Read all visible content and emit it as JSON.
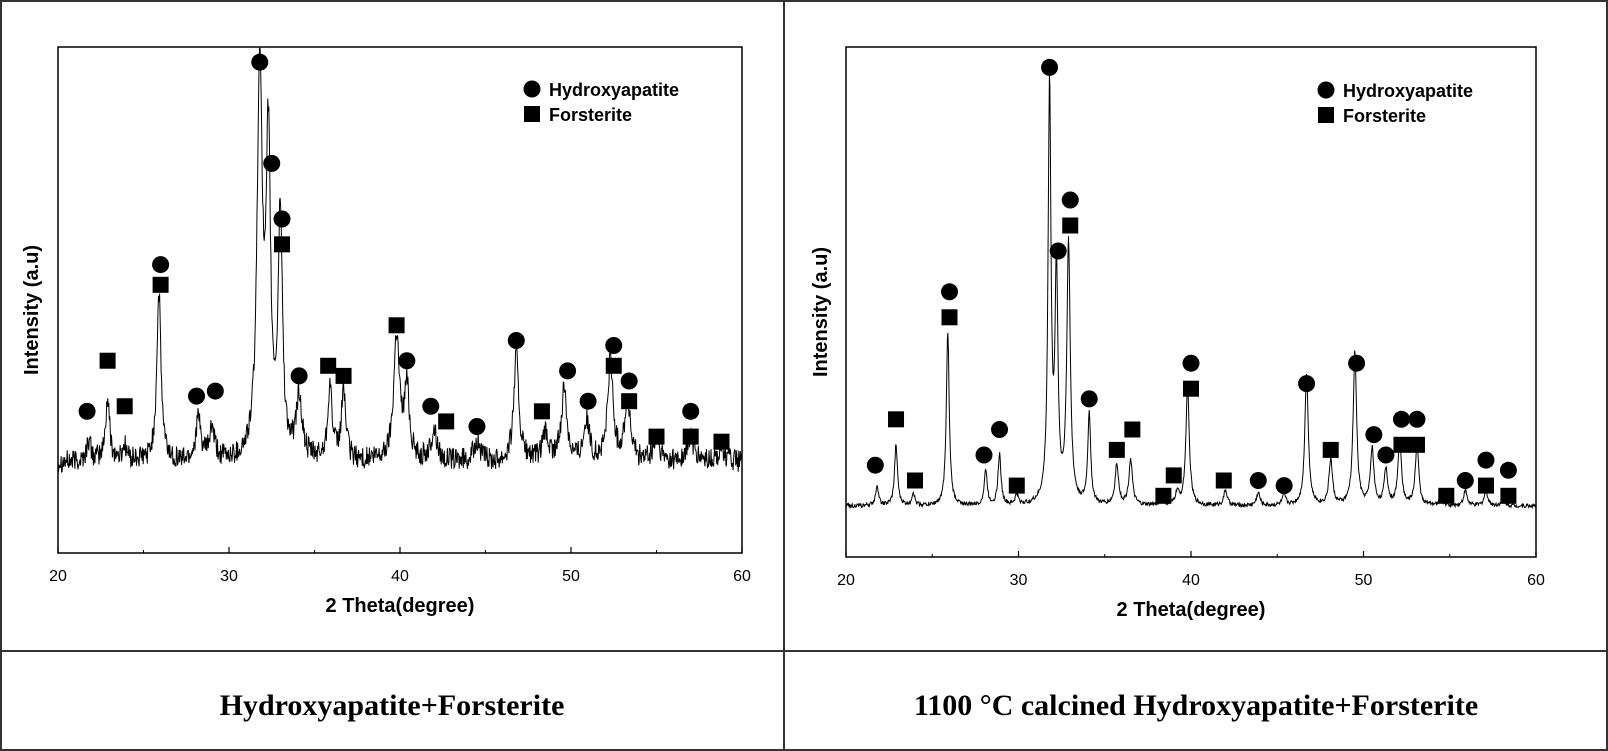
{
  "captions": {
    "left": "Hydroxyapatite+Forsterite",
    "right": "1100 °C calcined Hydroxyapatite+Forsterite"
  },
  "colors": {
    "line": "#000000",
    "border": "#333333",
    "background": "#ffffff"
  },
  "chart_data": [
    {
      "type": "line",
      "title": "",
      "xlabel": "2 Theta(degree)",
      "ylabel": "Intensity (a.u)",
      "xlim": [
        20,
        60
      ],
      "ylim": [
        0,
        100
      ],
      "xticks": [
        20,
        30,
        40,
        50,
        60
      ],
      "grid": false,
      "legend": {
        "position": "top-right",
        "entries": [
          {
            "name": "Hydroxyapatite",
            "marker": "circle"
          },
          {
            "name": "Forsterite",
            "marker": "square"
          }
        ]
      },
      "baseline": 18,
      "noise": 2.2,
      "peaks": [
        {
          "x": 21.8,
          "height": 4,
          "width": 0.15
        },
        {
          "x": 22.9,
          "height": 12,
          "width": 0.15
        },
        {
          "x": 23.9,
          "height": 3,
          "width": 0.15
        },
        {
          "x": 25.9,
          "height": 33,
          "width": 0.15
        },
        {
          "x": 28.2,
          "height": 8,
          "width": 0.18
        },
        {
          "x": 29.0,
          "height": 6,
          "width": 0.18
        },
        {
          "x": 31.8,
          "height": 78,
          "width": 0.18
        },
        {
          "x": 32.3,
          "height": 60,
          "width": 0.15
        },
        {
          "x": 33.0,
          "height": 48,
          "width": 0.15
        },
        {
          "x": 34.1,
          "height": 12,
          "width": 0.2
        },
        {
          "x": 35.9,
          "height": 15,
          "width": 0.15
        },
        {
          "x": 36.7,
          "height": 14,
          "width": 0.15
        },
        {
          "x": 39.8,
          "height": 25,
          "width": 0.2
        },
        {
          "x": 40.4,
          "height": 14,
          "width": 0.18
        },
        {
          "x": 42.0,
          "height": 6,
          "width": 0.2
        },
        {
          "x": 44.5,
          "height": 4,
          "width": 0.2
        },
        {
          "x": 46.8,
          "height": 21,
          "width": 0.18
        },
        {
          "x": 48.5,
          "height": 5,
          "width": 0.2
        },
        {
          "x": 49.6,
          "height": 14,
          "width": 0.2
        },
        {
          "x": 50.9,
          "height": 8,
          "width": 0.2
        },
        {
          "x": 52.3,
          "height": 20,
          "width": 0.18
        },
        {
          "x": 53.3,
          "height": 12,
          "width": 0.2
        },
        {
          "x": 55.0,
          "height": 4,
          "width": 0.2
        },
        {
          "x": 57.0,
          "height": 5,
          "width": 0.2
        },
        {
          "x": 58.8,
          "height": 3,
          "width": 0.2
        }
      ],
      "markers": [
        {
          "x": 21.7,
          "y": 28,
          "shape": "circle"
        },
        {
          "x": 22.9,
          "y": 38,
          "shape": "square"
        },
        {
          "x": 23.9,
          "y": 29,
          "shape": "square"
        },
        {
          "x": 26.0,
          "y": 57,
          "shape": "circle"
        },
        {
          "x": 26.0,
          "y": 53,
          "shape": "square"
        },
        {
          "x": 28.1,
          "y": 31,
          "shape": "circle"
        },
        {
          "x": 29.2,
          "y": 32,
          "shape": "circle"
        },
        {
          "x": 31.8,
          "y": 97,
          "shape": "circle"
        },
        {
          "x": 32.5,
          "y": 77,
          "shape": "circle"
        },
        {
          "x": 33.1,
          "y": 66,
          "shape": "circle"
        },
        {
          "x": 33.1,
          "y": 61,
          "shape": "square"
        },
        {
          "x": 34.1,
          "y": 35,
          "shape": "circle"
        },
        {
          "x": 35.8,
          "y": 37,
          "shape": "square"
        },
        {
          "x": 36.7,
          "y": 35,
          "shape": "square"
        },
        {
          "x": 39.8,
          "y": 45,
          "shape": "square"
        },
        {
          "x": 40.4,
          "y": 38,
          "shape": "circle"
        },
        {
          "x": 41.8,
          "y": 29,
          "shape": "circle"
        },
        {
          "x": 42.7,
          "y": 26,
          "shape": "square"
        },
        {
          "x": 44.5,
          "y": 25,
          "shape": "circle"
        },
        {
          "x": 46.8,
          "y": 42,
          "shape": "circle"
        },
        {
          "x": 48.3,
          "y": 28,
          "shape": "square"
        },
        {
          "x": 49.8,
          "y": 36,
          "shape": "circle"
        },
        {
          "x": 51.0,
          "y": 30,
          "shape": "circle"
        },
        {
          "x": 52.5,
          "y": 41,
          "shape": "circle"
        },
        {
          "x": 52.5,
          "y": 37,
          "shape": "square"
        },
        {
          "x": 53.4,
          "y": 34,
          "shape": "circle"
        },
        {
          "x": 53.4,
          "y": 30,
          "shape": "square"
        },
        {
          "x": 55.0,
          "y": 23,
          "shape": "square"
        },
        {
          "x": 57.0,
          "y": 28,
          "shape": "circle"
        },
        {
          "x": 57.0,
          "y": 23,
          "shape": "square"
        },
        {
          "x": 58.8,
          "y": 22,
          "shape": "square"
        }
      ]
    },
    {
      "type": "line",
      "title": "",
      "xlabel": "2 Theta(degree)",
      "ylabel": "Intensity (a.u)",
      "xlim": [
        20,
        60
      ],
      "ylim": [
        0,
        100
      ],
      "xticks": [
        20,
        30,
        40,
        50,
        60
      ],
      "grid": false,
      "legend": {
        "position": "top-right",
        "entries": [
          {
            "name": "Hydroxyapatite",
            "marker": "circle"
          },
          {
            "name": "Forsterite",
            "marker": "square"
          }
        ]
      },
      "baseline": 10,
      "noise": 0.4,
      "peaks": [
        {
          "x": 21.8,
          "height": 4,
          "width": 0.1
        },
        {
          "x": 22.9,
          "height": 12,
          "width": 0.1
        },
        {
          "x": 23.9,
          "height": 2.5,
          "width": 0.1
        },
        {
          "x": 25.9,
          "height": 34,
          "width": 0.1
        },
        {
          "x": 28.1,
          "height": 7,
          "width": 0.1
        },
        {
          "x": 28.9,
          "height": 10,
          "width": 0.1
        },
        {
          "x": 29.9,
          "height": 2,
          "width": 0.1
        },
        {
          "x": 31.8,
          "height": 82,
          "width": 0.1
        },
        {
          "x": 32.2,
          "height": 45,
          "width": 0.1
        },
        {
          "x": 32.9,
          "height": 51,
          "width": 0.12
        },
        {
          "x": 34.1,
          "height": 18,
          "width": 0.1
        },
        {
          "x": 35.7,
          "height": 8,
          "width": 0.12
        },
        {
          "x": 36.5,
          "height": 9,
          "width": 0.12
        },
        {
          "x": 38.3,
          "height": 1.5,
          "width": 0.12
        },
        {
          "x": 39.2,
          "height": 2.5,
          "width": 0.12
        },
        {
          "x": 39.8,
          "height": 23,
          "width": 0.12
        },
        {
          "x": 42.0,
          "height": 3,
          "width": 0.12
        },
        {
          "x": 43.9,
          "height": 2.5,
          "width": 0.12
        },
        {
          "x": 45.4,
          "height": 2,
          "width": 0.12
        },
        {
          "x": 46.7,
          "height": 26,
          "width": 0.12
        },
        {
          "x": 48.1,
          "height": 9,
          "width": 0.12
        },
        {
          "x": 49.5,
          "height": 30,
          "width": 0.12
        },
        {
          "x": 50.5,
          "height": 11,
          "width": 0.12
        },
        {
          "x": 51.3,
          "height": 7,
          "width": 0.12
        },
        {
          "x": 52.1,
          "height": 13,
          "width": 0.12
        },
        {
          "x": 53.1,
          "height": 12,
          "width": 0.12
        },
        {
          "x": 54.5,
          "height": 1.5,
          "width": 0.12
        },
        {
          "x": 55.9,
          "height": 3,
          "width": 0.12
        },
        {
          "x": 57.1,
          "height": 3,
          "width": 0.12
        },
        {
          "x": 58.1,
          "height": 1.5,
          "width": 0.12
        }
      ],
      "markers": [
        {
          "x": 21.7,
          "y": 18,
          "shape": "circle"
        },
        {
          "x": 22.9,
          "y": 27,
          "shape": "square"
        },
        {
          "x": 24.0,
          "y": 15,
          "shape": "square"
        },
        {
          "x": 26.0,
          "y": 52,
          "shape": "circle"
        },
        {
          "x": 26.0,
          "y": 47,
          "shape": "square"
        },
        {
          "x": 28.0,
          "y": 20,
          "shape": "circle"
        },
        {
          "x": 28.9,
          "y": 25,
          "shape": "circle"
        },
        {
          "x": 29.9,
          "y": 14,
          "shape": "square"
        },
        {
          "x": 31.8,
          "y": 96,
          "shape": "circle"
        },
        {
          "x": 32.3,
          "y": 60,
          "shape": "circle"
        },
        {
          "x": 33.0,
          "y": 70,
          "shape": "circle"
        },
        {
          "x": 33.0,
          "y": 65,
          "shape": "square"
        },
        {
          "x": 34.1,
          "y": 31,
          "shape": "circle"
        },
        {
          "x": 35.7,
          "y": 21,
          "shape": "square"
        },
        {
          "x": 36.6,
          "y": 25,
          "shape": "square"
        },
        {
          "x": 38.4,
          "y": 12,
          "shape": "square"
        },
        {
          "x": 39.0,
          "y": 16,
          "shape": "square"
        },
        {
          "x": 40.0,
          "y": 38,
          "shape": "circle"
        },
        {
          "x": 40.0,
          "y": 33,
          "shape": "square"
        },
        {
          "x": 41.9,
          "y": 15,
          "shape": "square"
        },
        {
          "x": 43.9,
          "y": 15,
          "shape": "circle"
        },
        {
          "x": 45.4,
          "y": 14,
          "shape": "circle"
        },
        {
          "x": 46.7,
          "y": 34,
          "shape": "circle"
        },
        {
          "x": 48.1,
          "y": 21,
          "shape": "square"
        },
        {
          "x": 49.6,
          "y": 38,
          "shape": "circle"
        },
        {
          "x": 50.6,
          "y": 24,
          "shape": "circle"
        },
        {
          "x": 51.3,
          "y": 20,
          "shape": "circle"
        },
        {
          "x": 52.2,
          "y": 27,
          "shape": "circle"
        },
        {
          "x": 52.2,
          "y": 22,
          "shape": "square"
        },
        {
          "x": 53.1,
          "y": 27,
          "shape": "circle"
        },
        {
          "x": 53.1,
          "y": 22,
          "shape": "square"
        },
        {
          "x": 54.8,
          "y": 12,
          "shape": "square"
        },
        {
          "x": 55.9,
          "y": 15,
          "shape": "circle"
        },
        {
          "x": 57.1,
          "y": 19,
          "shape": "circle"
        },
        {
          "x": 57.1,
          "y": 14,
          "shape": "square"
        },
        {
          "x": 58.4,
          "y": 17,
          "shape": "circle"
        },
        {
          "x": 58.4,
          "y": 12,
          "shape": "square"
        }
      ]
    }
  ]
}
